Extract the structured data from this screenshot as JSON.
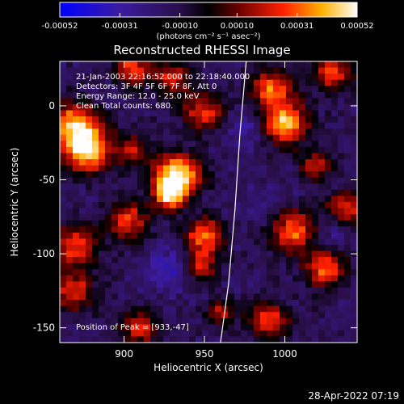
{
  "chart_data": {
    "type": "heatmap",
    "title": "Reconstructed RHESSI Image",
    "xlabel": "Heliocentric X (arcsec)",
    "ylabel": "Heliocentric Y (arcsec)",
    "xlim": [
      860,
      1045
    ],
    "ylim": [
      -160,
      30
    ],
    "x_ticks": [
      {
        "value": 900,
        "label": "900"
      },
      {
        "value": 950,
        "label": "950"
      },
      {
        "value": 1000,
        "label": "1000"
      }
    ],
    "y_ticks": [
      {
        "value": 0,
        "label": "0"
      },
      {
        "value": -50,
        "label": "-50"
      },
      {
        "value": -100,
        "label": "-100"
      },
      {
        "value": -150,
        "label": "-150"
      }
    ],
    "colorbar": {
      "min": -0.00052,
      "max": 0.00052,
      "unit": "(photons cm⁻² s⁻¹ asec⁻²)",
      "ticks": [
        {
          "value": -0.00052,
          "label": "-0.00052"
        },
        {
          "value": -0.00031,
          "label": "-0.00031"
        },
        {
          "value": -0.0001,
          "label": "-0.00010"
        },
        {
          "value": 0.0001,
          "label": "0.00010"
        },
        {
          "value": 0.00031,
          "label": "0.00031"
        },
        {
          "value": 0.00052,
          "label": "0.00052"
        }
      ]
    },
    "annotations": [
      "21-Jan-2003 22:16:52.000 to 22:18:40.000",
      "Detectors: 3F 4F 5F 6F 7F 8F, Att 0",
      "Energy Range: 12.0 - 25.0 keV",
      "Clean    Total counts: 680."
    ],
    "peak_label": "Position of Peak = [933,-47]",
    "peak": [
      933,
      -47
    ],
    "limb_points": [
      [
        976,
        30
      ],
      [
        972,
        -20
      ],
      [
        969,
        -70
      ],
      [
        965,
        -120
      ],
      [
        960,
        -160
      ]
    ],
    "blobs": [
      {
        "x": 933,
        "y": -47,
        "r": 10,
        "v": 0.00052
      },
      {
        "x": 928,
        "y": -60,
        "r": 7,
        "v": 0.0004
      },
      {
        "x": 870,
        "y": -15,
        "r": 12,
        "v": 0.00044
      },
      {
        "x": 878,
        "y": -32,
        "r": 10,
        "v": 0.00034
      },
      {
        "x": 905,
        "y": 25,
        "r": 8,
        "v": 0.00028
      },
      {
        "x": 1000,
        "y": -12,
        "r": 10,
        "v": 0.00042
      },
      {
        "x": 992,
        "y": 12,
        "r": 9,
        "v": 0.00032
      },
      {
        "x": 1030,
        "y": 22,
        "r": 8,
        "v": 0.0003
      },
      {
        "x": 950,
        "y": -5,
        "r": 9,
        "v": 0.00026
      },
      {
        "x": 930,
        "y": 18,
        "r": 8,
        "v": 0.00022
      },
      {
        "x": 950,
        "y": -88,
        "r": 8,
        "v": 0.00036
      },
      {
        "x": 948,
        "y": -108,
        "r": 7,
        "v": 0.00026
      },
      {
        "x": 902,
        "y": -78,
        "r": 9,
        "v": 0.00028
      },
      {
        "x": 870,
        "y": -95,
        "r": 10,
        "v": 0.00026
      },
      {
        "x": 868,
        "y": -125,
        "r": 9,
        "v": 0.00024
      },
      {
        "x": 1005,
        "y": -85,
        "r": 10,
        "v": 0.00032
      },
      {
        "x": 1025,
        "y": -110,
        "r": 9,
        "v": 0.0003
      },
      {
        "x": 1038,
        "y": -70,
        "r": 8,
        "v": 0.00028
      },
      {
        "x": 990,
        "y": -145,
        "r": 9,
        "v": 0.00026
      },
      {
        "x": 910,
        "y": -150,
        "r": 8,
        "v": 0.00022
      },
      {
        "x": 1020,
        "y": -40,
        "r": 7,
        "v": 0.00022
      },
      {
        "x": 905,
        "y": -30,
        "r": 7,
        "v": 0.0002
      },
      {
        "x": 960,
        "y": -140,
        "r": 6,
        "v": 0.0002
      }
    ],
    "negative_blobs": [
      {
        "x": 928,
        "y": -110,
        "r": 10,
        "v": -0.00035
      },
      {
        "x": 975,
        "y": -15,
        "r": 9,
        "v": -0.0003
      },
      {
        "x": 1030,
        "y": -85,
        "r": 8,
        "v": -0.00028
      },
      {
        "x": 985,
        "y": -65,
        "r": 9,
        "v": -0.00022
      },
      {
        "x": 890,
        "y": 5,
        "r": 8,
        "v": -0.0002
      }
    ]
  },
  "footer": {
    "date": "28-Apr-2022 07:19"
  }
}
